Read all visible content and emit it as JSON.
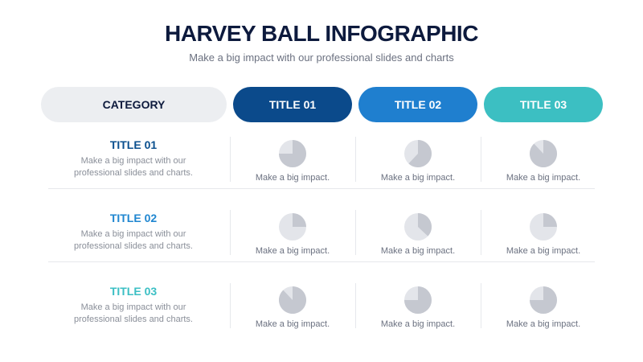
{
  "header": {
    "title": "HARVEY BALL INFOGRAPHIC",
    "subtitle": "Make a big impact with our professional slides and charts"
  },
  "table": {
    "category_header": {
      "label": "CATEGORY",
      "color": "#eceef1"
    },
    "columns": [
      {
        "label": "TITLE 01",
        "color": "#0b4a8b"
      },
      {
        "label": "TITLE 02",
        "color": "#1f7fcf"
      },
      {
        "label": "TITLE 03",
        "color": "#3cbfc2"
      }
    ],
    "rows": [
      {
        "title": "TITLE 01",
        "color": "#0a4f8e",
        "text": "Make a big impact with our professional slides and charts.",
        "cells": [
          {
            "value": 75,
            "label": "Make a big impact."
          },
          {
            "value": 62,
            "label": "Make a big impact."
          },
          {
            "value": 88,
            "label": "Make a big impact."
          }
        ]
      },
      {
        "title": "TITLE 02",
        "color": "#1f86d0",
        "text": "Make a big impact with our professional slides and charts.",
        "cells": [
          {
            "value": 25,
            "label": "Make a big impact."
          },
          {
            "value": 37,
            "label": "Make a big impact."
          },
          {
            "value": 25,
            "label": "Make a big impact."
          }
        ]
      },
      {
        "title": "TITLE 03",
        "color": "#3bbfc4",
        "text": "Make a big impact with our professional slides and charts.",
        "cells": [
          {
            "value": 88,
            "label": "Make a big impact."
          },
          {
            "value": 75,
            "label": "Make a big impact."
          },
          {
            "value": 75,
            "label": "Make a big impact."
          }
        ]
      }
    ]
  }
}
